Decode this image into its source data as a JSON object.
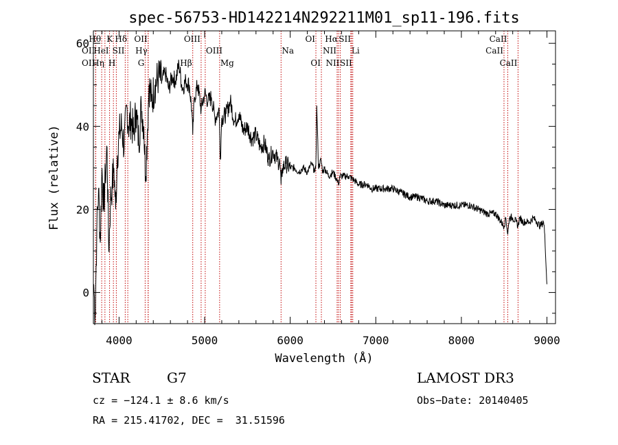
{
  "chart_data": {
    "type": "line",
    "title": "spec-56753-HD142214N292211M01_sp11-196.fits",
    "xlabel": "Wavelength (Å)",
    "ylabel": "Flux (relative)",
    "xlim": [
      3700,
      9100
    ],
    "ylim": [
      -7.5,
      63
    ],
    "xticks": [
      4000,
      5000,
      6000,
      7000,
      8000,
      9000
    ],
    "yticks": [
      0,
      20,
      40,
      60
    ],
    "series": [
      {
        "name": "flux",
        "x": [
          3705,
          3720,
          3740,
          3760,
          3780,
          3800,
          3820,
          3840,
          3860,
          3880,
          3900,
          3920,
          3940,
          3960,
          3980,
          4000,
          4030,
          4060,
          4090,
          4110,
          4140,
          4170,
          4200,
          4230,
          4260,
          4290,
          4310,
          4330,
          4350,
          4380,
          4420,
          4460,
          4500,
          4540,
          4580,
          4620,
          4660,
          4700,
          4740,
          4780,
          4820,
          4850,
          4861,
          4880,
          4920,
          4960,
          5000,
          5040,
          5080,
          5120,
          5150,
          5170,
          5183,
          5200,
          5250,
          5300,
          5350,
          5400,
          5450,
          5500,
          5550,
          5600,
          5650,
          5700,
          5750,
          5800,
          5850,
          5880,
          5893,
          5910,
          5950,
          6000,
          6050,
          6100,
          6150,
          6200,
          6250,
          6290,
          6300,
          6310,
          6330,
          6360,
          6380,
          6400,
          6450,
          6500,
          6550,
          6563,
          6580,
          6620,
          6680,
          6750,
          6800,
          6850,
          6900,
          6950,
          7000,
          7100,
          7200,
          7300,
          7400,
          7500,
          7600,
          7700,
          7800,
          7900,
          8000,
          8100,
          8200,
          8300,
          8400,
          8498,
          8520,
          8542,
          8560,
          8600,
          8640,
          8662,
          8680,
          8720,
          8760,
          8800,
          8840,
          8880,
          8920,
          8960,
          8975,
          8990,
          9000
        ],
        "values": [
          2,
          -6,
          15,
          25,
          12,
          30,
          20,
          28,
          35,
          10,
          22,
          26,
          30,
          20,
          33,
          38,
          40,
          35,
          45,
          40,
          42,
          38,
          44,
          36,
          45,
          40,
          28,
          38,
          50,
          46,
          50,
          52,
          51,
          53,
          49,
          52,
          51,
          55,
          49,
          51,
          50,
          44,
          38,
          47,
          50,
          44,
          48,
          46,
          47,
          42,
          43,
          44,
          32,
          42,
          43,
          46,
          41,
          43,
          39,
          40,
          37,
          38,
          35,
          36,
          32,
          34,
          32,
          31,
          26,
          30,
          31,
          30,
          30,
          29,
          30,
          29,
          31,
          29,
          31,
          45,
          30,
          32,
          29,
          30,
          28,
          29,
          27,
          26,
          28,
          28,
          28,
          27,
          26,
          26,
          26,
          25,
          25,
          25,
          25,
          24,
          23,
          23,
          22,
          22,
          21,
          21,
          21,
          21,
          20,
          19,
          19,
          16,
          18,
          14,
          18,
          18,
          17,
          16,
          18,
          17,
          17,
          17,
          18,
          17,
          16,
          17,
          14,
          6,
          2
        ]
      }
    ],
    "lines": [
      {
        "name": "OII",
        "wl": 3727,
        "row": 1,
        "side": "left"
      },
      {
        "name": "OII",
        "wl": 3727,
        "row": 2,
        "side": "left"
      },
      {
        "name": "Hθ",
        "wl": 3797,
        "row": 0,
        "side": "left"
      },
      {
        "name": "Hη",
        "wl": 3835,
        "row": 2,
        "side": "left"
      },
      {
        "name": "HeI",
        "wl": 3889,
        "row": 1,
        "side": "left"
      },
      {
        "name": "K",
        "wl": 3934,
        "row": 0,
        "side": "left"
      },
      {
        "name": "H",
        "wl": 3968,
        "row": 2,
        "side": "left"
      },
      {
        "name": "SII",
        "wl": 4072,
        "row": 1,
        "side": "left"
      },
      {
        "name": "Hδ",
        "wl": 4102,
        "row": 0,
        "side": "left"
      },
      {
        "name": "G",
        "wl": 4305,
        "row": 2,
        "side": "left"
      },
      {
        "name": "OII",
        "wl": 4340,
        "row": 0,
        "side": "left"
      },
      {
        "name": "Hγ",
        "wl": 4340,
        "row": 1,
        "side": "left"
      },
      {
        "name": "Hβ",
        "wl": 4861,
        "row": 2,
        "side": "left"
      },
      {
        "name": "OIII",
        "wl": 4959,
        "row": 0,
        "side": "left"
      },
      {
        "name": "OIII",
        "wl": 5007,
        "row": 1,
        "side": "right"
      },
      {
        "name": "Mg",
        "wl": 5175,
        "row": 2,
        "side": "right"
      },
      {
        "name": "Na",
        "wl": 5893,
        "row": 1,
        "side": "right"
      },
      {
        "name": "OI",
        "wl": 6300,
        "row": 0,
        "side": "left"
      },
      {
        "name": "OI",
        "wl": 6364,
        "row": 2,
        "side": "left"
      },
      {
        "name": "NII",
        "wl": 6548,
        "row": 1,
        "side": "left"
      },
      {
        "name": "Hα",
        "wl": 6563,
        "row": 0,
        "side": "left"
      },
      {
        "name": "NII",
        "wl": 6584,
        "row": 2,
        "side": "left"
      },
      {
        "name": "SII",
        "wl": 6717,
        "row": 0,
        "side": "left"
      },
      {
        "name": "Li",
        "wl": 6708,
        "row": 1,
        "side": "right"
      },
      {
        "name": "SII",
        "wl": 6731,
        "row": 2,
        "side": "left"
      },
      {
        "name": "CaII",
        "wl": 8498,
        "row": 1,
        "side": "left"
      },
      {
        "name": "CaII",
        "wl": 8542,
        "row": 0,
        "side": "left"
      },
      {
        "name": "CaII",
        "wl": 8662,
        "row": 2,
        "side": "left"
      }
    ]
  },
  "info": {
    "object_class": "STAR",
    "subclass": "G7",
    "survey": "LAMOST DR3",
    "redshift_line": "cz = −124.1 ± 8.6 km/s",
    "obs_date": "Obs−Date: 20140405",
    "coords": "RA = 215.41702, DEC =  31.51596"
  },
  "colors": {
    "line_marker": "#c00000",
    "spectrum": "#000000"
  }
}
